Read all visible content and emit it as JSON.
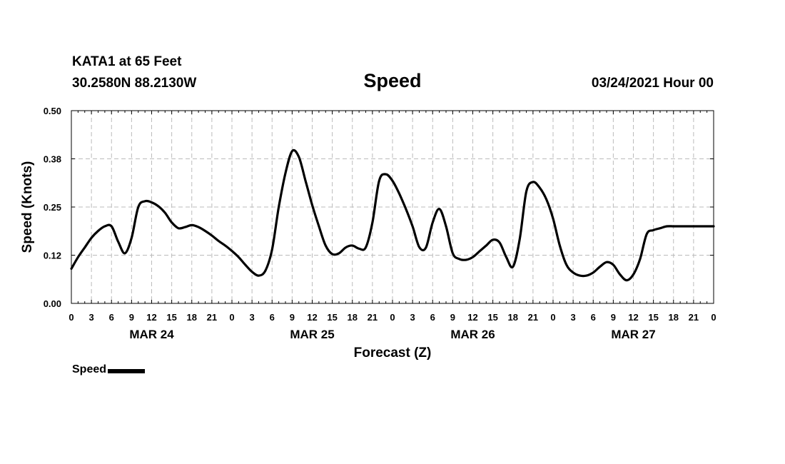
{
  "header": {
    "station": "KATA1 at 65 Feet",
    "coords": "30.2580N 88.2130W",
    "title": "Speed",
    "datetime": "03/24/2021 Hour 00"
  },
  "legend": {
    "label": "Speed"
  },
  "colors": {
    "line": "#000000",
    "grid": "#bbbbbb",
    "background": "#ffffff"
  },
  "chart_data": {
    "type": "line",
    "title": "Speed",
    "xlabel": "Forecast (Z)",
    "ylabel": "Speed (Knots)",
    "xlim": [
      0,
      96
    ],
    "ylim": [
      0,
      0.5
    ],
    "yticks": [
      "0.00",
      "0.12",
      "0.25",
      "0.38",
      "0.50"
    ],
    "ytick_values": [
      0,
      0.125,
      0.25,
      0.375,
      0.5
    ],
    "xtick_labels": [
      "0",
      "3",
      "6",
      "9",
      "12",
      "15",
      "18",
      "21",
      "0",
      "3",
      "6",
      "9",
      "12",
      "15",
      "18",
      "21",
      "0",
      "3",
      "6",
      "9",
      "12",
      "15",
      "18",
      "21",
      "0",
      "3",
      "6",
      "9",
      "12",
      "15",
      "18",
      "21",
      "0"
    ],
    "day_labels": [
      {
        "label": "MAR 24",
        "hour": 12
      },
      {
        "label": "MAR 25",
        "hour": 36
      },
      {
        "label": "MAR 26",
        "hour": 60
      },
      {
        "label": "MAR 27",
        "hour": 84
      }
    ],
    "grid": true,
    "legend": "bottom-left",
    "series": [
      {
        "name": "Speed",
        "x": [
          0,
          1,
          2,
          3,
          4,
          5,
          6,
          7,
          8,
          9,
          10,
          11,
          12,
          13,
          14,
          15,
          16,
          17,
          18,
          19,
          20,
          21,
          22,
          23,
          24,
          25,
          26,
          27,
          28,
          29,
          30,
          31,
          32,
          33,
          34,
          35,
          36,
          37,
          38,
          39,
          40,
          41,
          42,
          43,
          44,
          45,
          46,
          47,
          48,
          49,
          50,
          51,
          52,
          53,
          54,
          55,
          56,
          57,
          58,
          59,
          60,
          61,
          62,
          63,
          64,
          65,
          66,
          67,
          68,
          69,
          70,
          71,
          72,
          73,
          74,
          75,
          76,
          77,
          78,
          79,
          80,
          81,
          82,
          83,
          84,
          85,
          86,
          87,
          88,
          89,
          90,
          91,
          92,
          93,
          94,
          95,
          96
        ],
        "values": [
          0.09,
          0.12,
          0.145,
          0.17,
          0.188,
          0.2,
          0.2,
          0.16,
          0.13,
          0.17,
          0.25,
          0.265,
          0.262,
          0.252,
          0.235,
          0.21,
          0.195,
          0.198,
          0.203,
          0.198,
          0.188,
          0.176,
          0.162,
          0.15,
          0.136,
          0.12,
          0.1,
          0.082,
          0.072,
          0.085,
          0.14,
          0.25,
          0.338,
          0.395,
          0.38,
          0.318,
          0.255,
          0.2,
          0.15,
          0.128,
          0.13,
          0.145,
          0.15,
          0.142,
          0.145,
          0.21,
          0.318,
          0.335,
          0.318,
          0.285,
          0.245,
          0.2,
          0.146,
          0.145,
          0.21,
          0.245,
          0.2,
          0.13,
          0.115,
          0.113,
          0.12,
          0.135,
          0.15,
          0.165,
          0.158,
          0.12,
          0.095,
          0.165,
          0.29,
          0.315,
          0.3,
          0.27,
          0.22,
          0.15,
          0.1,
          0.08,
          0.072,
          0.072,
          0.08,
          0.095,
          0.107,
          0.1,
          0.075,
          0.06,
          0.075,
          0.115,
          0.18,
          0.19,
          0.195,
          0.2,
          0.2,
          0.2,
          0.2,
          0.2,
          0.2,
          0.2,
          0.2
        ]
      }
    ]
  }
}
